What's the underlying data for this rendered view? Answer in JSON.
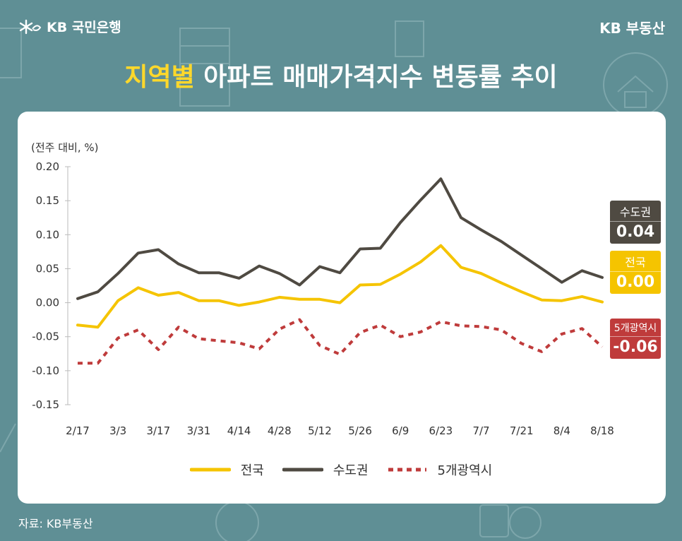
{
  "header": {
    "logo_text": "KB 국민은행",
    "brand": "KB 부동산",
    "title_highlight": "지역별",
    "title_rest": " 아파트 매매가격지수 변동률 추이"
  },
  "unit_label": "(전주 대비, %)",
  "source": "자료: KB부동산",
  "chart_data": {
    "type": "line",
    "x": [
      "2/17",
      "2/24",
      "3/3",
      "3/10",
      "3/17",
      "3/24",
      "3/31",
      "4/7",
      "4/14",
      "4/21",
      "4/28",
      "5/5",
      "5/12",
      "5/19",
      "5/26",
      "6/2",
      "6/9",
      "6/16",
      "6/23",
      "6/30",
      "7/7",
      "7/14",
      "7/21",
      "7/28",
      "8/4",
      "8/11",
      "8/18"
    ],
    "tick_labels": [
      "2/17",
      "3/3",
      "3/17",
      "3/31",
      "4/14",
      "4/28",
      "5/12",
      "5/26",
      "6/9",
      "6/23",
      "7/7",
      "7/21",
      "8/4",
      "8/18"
    ],
    "ylim": [
      -0.15,
      0.2
    ],
    "yticks": [
      "0.20",
      "0.15",
      "0.10",
      "0.05",
      "0.00",
      "-0.05",
      "-0.10",
      "-0.15"
    ],
    "series": [
      {
        "name": "전국",
        "color": "#f5c400",
        "dash": false,
        "values": [
          -0.033,
          -0.036,
          0.003,
          0.022,
          0.011,
          0.015,
          0.003,
          0.003,
          -0.004,
          0.001,
          0.008,
          0.005,
          0.005,
          0.0,
          0.026,
          0.027,
          0.042,
          0.06,
          0.084,
          0.052,
          0.043,
          0.029,
          0.016,
          0.004,
          0.003,
          0.009,
          0.001
        ]
      },
      {
        "name": "수도권",
        "color": "#4f4a42",
        "dash": false,
        "values": [
          0.006,
          0.016,
          0.043,
          0.073,
          0.078,
          0.057,
          0.044,
          0.044,
          0.036,
          0.054,
          0.043,
          0.026,
          0.053,
          0.044,
          0.079,
          0.08,
          0.118,
          0.151,
          0.182,
          0.125,
          0.107,
          0.09,
          0.07,
          0.05,
          0.03,
          0.047,
          0.037
        ]
      },
      {
        "name": "5개광역시",
        "color": "#bf3b3b",
        "dash": true,
        "values": [
          -0.089,
          -0.089,
          -0.052,
          -0.04,
          -0.069,
          -0.036,
          -0.053,
          -0.056,
          -0.059,
          -0.068,
          -0.039,
          -0.025,
          -0.063,
          -0.076,
          -0.044,
          -0.033,
          -0.05,
          -0.043,
          -0.028,
          -0.034,
          -0.035,
          -0.04,
          -0.06,
          -0.072,
          -0.046,
          -0.038,
          -0.065
        ]
      }
    ],
    "badges": [
      {
        "name": "수도권",
        "value": "0.04",
        "color": "#4f4a42"
      },
      {
        "name": "전국",
        "value": "0.00",
        "color": "#f5c400"
      },
      {
        "name": "5개광역시",
        "value": "-0.06",
        "color": "#bf3b3b"
      }
    ],
    "legend": {
      "position": "bottom-center"
    }
  }
}
